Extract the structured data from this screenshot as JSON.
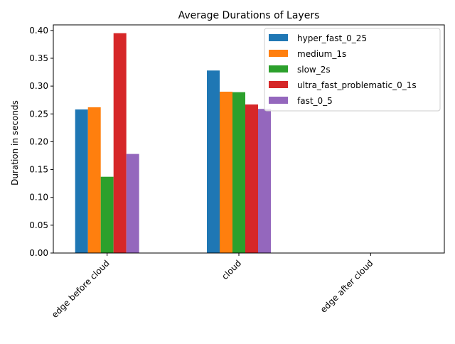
{
  "chart_data": {
    "type": "bar",
    "title": "Average Durations of Layers",
    "xlabel": "",
    "ylabel": "Duration in seconds",
    "categories": [
      "edge before cloud",
      "cloud",
      "edge after cloud"
    ],
    "ylim": [
      0,
      0.41
    ],
    "yticks": [
      "0.00",
      "0.05",
      "0.10",
      "0.15",
      "0.20",
      "0.25",
      "0.30",
      "0.35",
      "0.40"
    ],
    "legend_position": "top-right",
    "grid": false,
    "series": [
      {
        "name": "hyper_fast_0_25",
        "color": "#1f77b4",
        "values": [
          0.258,
          0.328,
          null
        ]
      },
      {
        "name": "medium_1s",
        "color": "#ff7f0e",
        "values": [
          0.262,
          0.29,
          null
        ]
      },
      {
        "name": "slow_2s",
        "color": "#2ca02c",
        "values": [
          0.137,
          0.289,
          null
        ]
      },
      {
        "name": "ultra_fast_problematic_0_1s",
        "color": "#d62728",
        "values": [
          0.395,
          0.267,
          null
        ]
      },
      {
        "name": "fast_0_5",
        "color": "#9467bd",
        "values": [
          0.178,
          0.259,
          null
        ]
      }
    ]
  }
}
